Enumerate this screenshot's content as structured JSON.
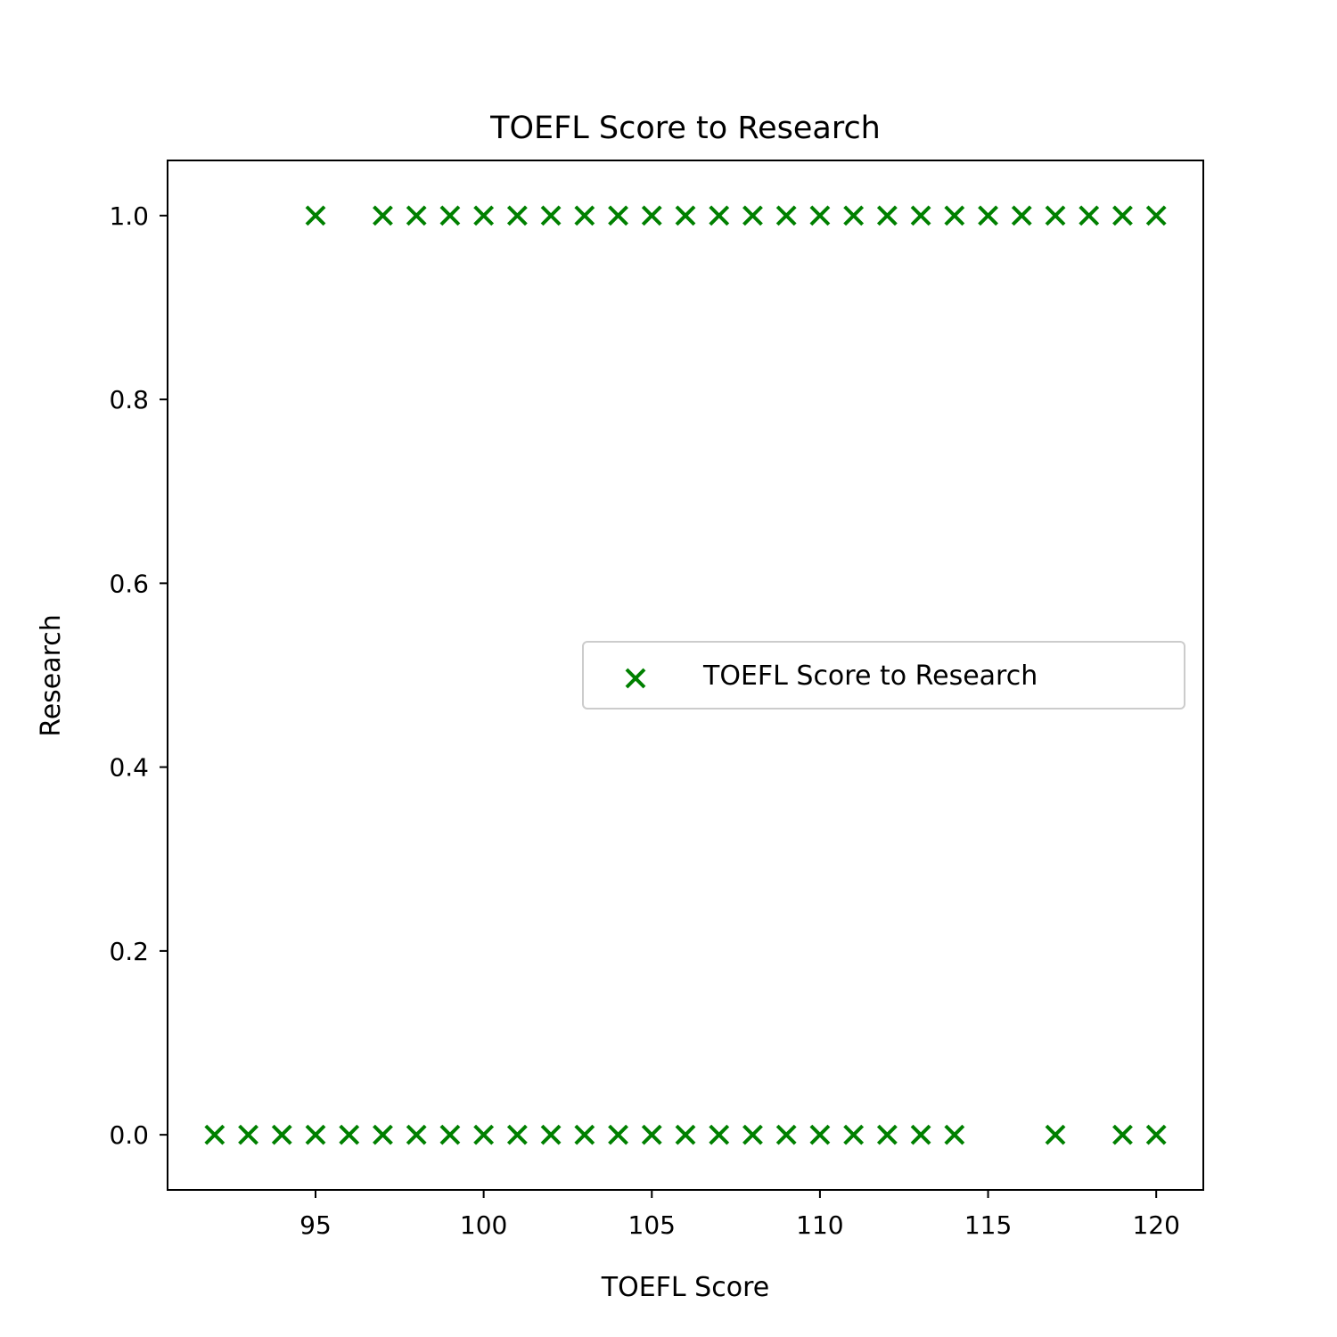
{
  "chart_data": {
    "type": "scatter",
    "title": "TOEFL Score to Research",
    "xlabel": "TOEFL Score",
    "ylabel": "Research",
    "xlim": [
      90.6,
      121.4
    ],
    "ylim": [
      -0.06,
      1.06
    ],
    "xticks": [
      95,
      100,
      105,
      110,
      115,
      120
    ],
    "yticks": [
      0.0,
      0.2,
      0.4,
      0.6,
      0.8,
      1.0
    ],
    "xtick_labels": [
      "95",
      "100",
      "105",
      "110",
      "115",
      "120"
    ],
    "ytick_labels": [
      "0.0",
      "0.2",
      "0.4",
      "0.6",
      "0.8",
      "1.0"
    ],
    "grid": false,
    "legend_position": "center-right",
    "series": [
      {
        "name": "TOEFL Score to Research",
        "marker": "x",
        "color": "#008000",
        "points": [
          [
            95,
            1
          ],
          [
            97,
            1
          ],
          [
            98,
            1
          ],
          [
            99,
            1
          ],
          [
            100,
            1
          ],
          [
            101,
            1
          ],
          [
            102,
            1
          ],
          [
            103,
            1
          ],
          [
            104,
            1
          ],
          [
            105,
            1
          ],
          [
            106,
            1
          ],
          [
            107,
            1
          ],
          [
            108,
            1
          ],
          [
            109,
            1
          ],
          [
            110,
            1
          ],
          [
            111,
            1
          ],
          [
            112,
            1
          ],
          [
            113,
            1
          ],
          [
            114,
            1
          ],
          [
            115,
            1
          ],
          [
            116,
            1
          ],
          [
            117,
            1
          ],
          [
            118,
            1
          ],
          [
            119,
            1
          ],
          [
            120,
            1
          ],
          [
            92,
            0
          ],
          [
            93,
            0
          ],
          [
            94,
            0
          ],
          [
            95,
            0
          ],
          [
            96,
            0
          ],
          [
            97,
            0
          ],
          [
            98,
            0
          ],
          [
            99,
            0
          ],
          [
            100,
            0
          ],
          [
            101,
            0
          ],
          [
            102,
            0
          ],
          [
            103,
            0
          ],
          [
            104,
            0
          ],
          [
            105,
            0
          ],
          [
            106,
            0
          ],
          [
            107,
            0
          ],
          [
            108,
            0
          ],
          [
            109,
            0
          ],
          [
            110,
            0
          ],
          [
            111,
            0
          ],
          [
            112,
            0
          ],
          [
            113,
            0
          ],
          [
            114,
            0
          ],
          [
            117,
            0
          ],
          [
            119,
            0
          ],
          [
            120,
            0
          ]
        ]
      }
    ]
  }
}
